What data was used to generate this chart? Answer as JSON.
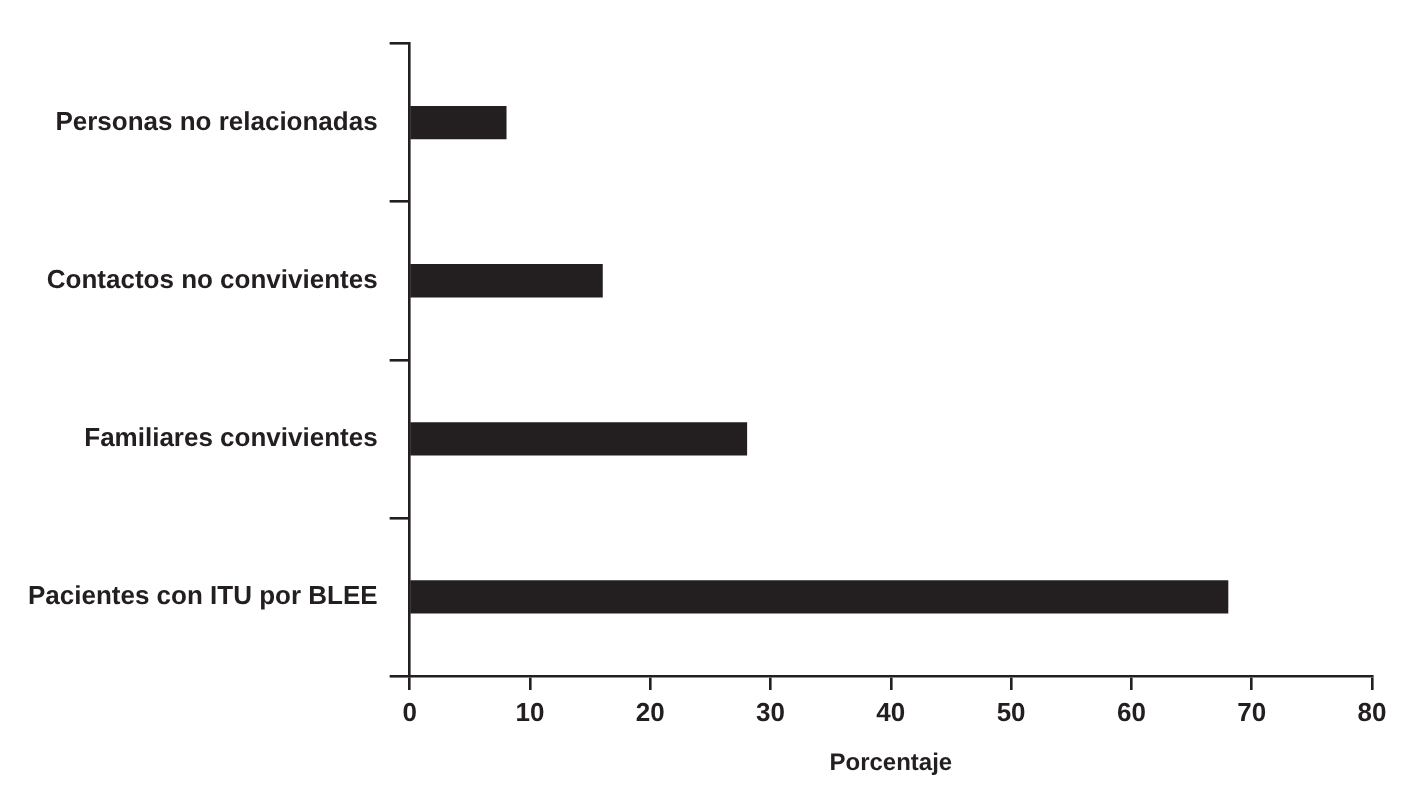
{
  "chart_data": {
    "type": "bar",
    "orientation": "horizontal",
    "xlabel": "Porcentaje",
    "categories": [
      "Personas no relacionadas",
      "Contactos no convivientes",
      "Familiares convivientes",
      "Pacientes con ITU por BLEE"
    ],
    "values": [
      8,
      16,
      28,
      68
    ],
    "color": "#231f20",
    "xlim": [
      0,
      80
    ],
    "xticks": [
      0,
      10,
      20,
      30,
      40,
      50,
      60,
      70,
      80
    ],
    "grid": false,
    "legend": false
  }
}
